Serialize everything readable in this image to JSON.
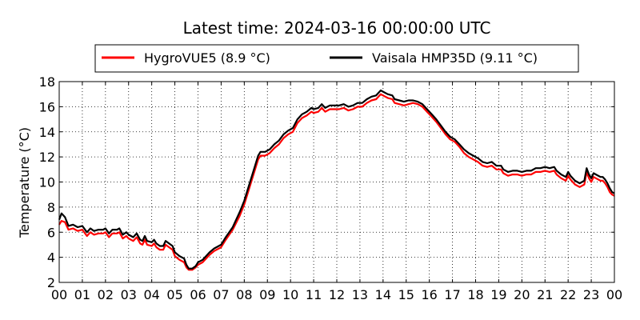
{
  "chart_data": {
    "type": "line",
    "title": "Latest time: 2024-03-16 00:00:00 UTC",
    "xlabel": "",
    "ylabel": "Temperature (°C)",
    "x_unit": "hour of day (UTC)",
    "xlim": [
      0,
      24
    ],
    "ylim": [
      2,
      18
    ],
    "grid": true,
    "legend_position": "top",
    "x_ticks": [
      "00",
      "01",
      "02",
      "03",
      "04",
      "05",
      "06",
      "07",
      "08",
      "09",
      "10",
      "11",
      "12",
      "13",
      "14",
      "15",
      "16",
      "17",
      "18",
      "19",
      "20",
      "21",
      "22",
      "23",
      "00"
    ],
    "y_ticks": [
      "2",
      "4",
      "6",
      "8",
      "10",
      "12",
      "14",
      "16",
      "18"
    ],
    "series": [
      {
        "name": "HygroVUE5 (8.9 °C)",
        "color": "#ff0000",
        "points": [
          [
            0.0,
            6.6
          ],
          [
            0.1,
            6.9
          ],
          [
            0.25,
            6.8
          ],
          [
            0.4,
            6.2
          ],
          [
            0.6,
            6.3
          ],
          [
            0.8,
            6.1
          ],
          [
            1.0,
            6.2
          ],
          [
            1.2,
            5.7
          ],
          [
            1.35,
            6.0
          ],
          [
            1.5,
            5.8
          ],
          [
            1.7,
            5.9
          ],
          [
            1.9,
            5.9
          ],
          [
            2.0,
            6.0
          ],
          [
            2.15,
            5.6
          ],
          [
            2.3,
            5.9
          ],
          [
            2.5,
            5.9
          ],
          [
            2.6,
            6.0
          ],
          [
            2.75,
            5.5
          ],
          [
            2.9,
            5.7
          ],
          [
            3.0,
            5.5
          ],
          [
            3.2,
            5.3
          ],
          [
            3.35,
            5.6
          ],
          [
            3.5,
            5.1
          ],
          [
            3.6,
            5.0
          ],
          [
            3.7,
            5.4
          ],
          [
            3.8,
            5.0
          ],
          [
            4.0,
            4.9
          ],
          [
            4.1,
            5.1
          ],
          [
            4.2,
            4.8
          ],
          [
            4.35,
            4.6
          ],
          [
            4.5,
            4.6
          ],
          [
            4.6,
            5.0
          ],
          [
            4.75,
            4.8
          ],
          [
            4.9,
            4.6
          ],
          [
            5.0,
            4.1
          ],
          [
            5.2,
            3.8
          ],
          [
            5.4,
            3.6
          ],
          [
            5.5,
            3.2
          ],
          [
            5.6,
            3.0
          ],
          [
            5.75,
            3.0
          ],
          [
            5.9,
            3.2
          ],
          [
            6.0,
            3.4
          ],
          [
            6.2,
            3.6
          ],
          [
            6.5,
            4.2
          ],
          [
            6.7,
            4.5
          ],
          [
            7.0,
            4.8
          ],
          [
            7.2,
            5.4
          ],
          [
            7.5,
            6.2
          ],
          [
            7.8,
            7.3
          ],
          [
            8.0,
            8.2
          ],
          [
            8.2,
            9.4
          ],
          [
            8.4,
            10.6
          ],
          [
            8.6,
            11.8
          ],
          [
            8.7,
            12.1
          ],
          [
            8.9,
            12.1
          ],
          [
            9.1,
            12.3
          ],
          [
            9.3,
            12.7
          ],
          [
            9.5,
            13.0
          ],
          [
            9.7,
            13.5
          ],
          [
            9.9,
            13.8
          ],
          [
            10.1,
            14.0
          ],
          [
            10.3,
            14.7
          ],
          [
            10.5,
            15.1
          ],
          [
            10.7,
            15.3
          ],
          [
            10.9,
            15.6
          ],
          [
            11.0,
            15.5
          ],
          [
            11.2,
            15.6
          ],
          [
            11.35,
            15.9
          ],
          [
            11.5,
            15.6
          ],
          [
            11.7,
            15.8
          ],
          [
            11.9,
            15.8
          ],
          [
            12.1,
            15.8
          ],
          [
            12.3,
            15.9
          ],
          [
            12.5,
            15.7
          ],
          [
            12.7,
            15.8
          ],
          [
            12.9,
            16.0
          ],
          [
            13.1,
            16.0
          ],
          [
            13.3,
            16.3
          ],
          [
            13.5,
            16.5
          ],
          [
            13.7,
            16.6
          ],
          [
            13.9,
            17.0
          ],
          [
            14.0,
            16.9
          ],
          [
            14.2,
            16.7
          ],
          [
            14.4,
            16.6
          ],
          [
            14.5,
            16.3
          ],
          [
            14.7,
            16.2
          ],
          [
            14.9,
            16.1
          ],
          [
            15.1,
            16.2
          ],
          [
            15.3,
            16.3
          ],
          [
            15.5,
            16.2
          ],
          [
            15.7,
            16.0
          ],
          [
            15.9,
            15.6
          ],
          [
            16.1,
            15.2
          ],
          [
            16.3,
            14.8
          ],
          [
            16.5,
            14.3
          ],
          [
            16.7,
            13.8
          ],
          [
            16.9,
            13.4
          ],
          [
            17.1,
            13.2
          ],
          [
            17.3,
            12.8
          ],
          [
            17.5,
            12.3
          ],
          [
            17.7,
            12.0
          ],
          [
            17.9,
            11.8
          ],
          [
            18.1,
            11.6
          ],
          [
            18.3,
            11.3
          ],
          [
            18.5,
            11.2
          ],
          [
            18.7,
            11.3
          ],
          [
            18.9,
            11.0
          ],
          [
            19.1,
            11.0
          ],
          [
            19.2,
            10.7
          ],
          [
            19.4,
            10.5
          ],
          [
            19.6,
            10.6
          ],
          [
            19.8,
            10.6
          ],
          [
            20.0,
            10.5
          ],
          [
            20.2,
            10.6
          ],
          [
            20.4,
            10.6
          ],
          [
            20.6,
            10.8
          ],
          [
            20.8,
            10.8
          ],
          [
            21.0,
            10.9
          ],
          [
            21.2,
            10.8
          ],
          [
            21.4,
            10.9
          ],
          [
            21.5,
            10.6
          ],
          [
            21.7,
            10.3
          ],
          [
            21.9,
            10.1
          ],
          [
            22.0,
            10.5
          ],
          [
            22.1,
            10.2
          ],
          [
            22.3,
            9.8
          ],
          [
            22.5,
            9.6
          ],
          [
            22.7,
            9.8
          ],
          [
            22.8,
            10.8
          ],
          [
            22.9,
            10.3
          ],
          [
            23.0,
            10.0
          ],
          [
            23.1,
            10.4
          ],
          [
            23.2,
            10.3
          ],
          [
            23.4,
            10.1
          ],
          [
            23.5,
            10.1
          ],
          [
            23.6,
            9.9
          ],
          [
            23.7,
            9.6
          ],
          [
            23.8,
            9.2
          ],
          [
            23.9,
            9.0
          ],
          [
            24.0,
            8.9
          ]
        ]
      },
      {
        "name": "Vaisala HMP35D (9.11 °C)",
        "color": "#000000",
        "points": [
          [
            0.0,
            7.0
          ],
          [
            0.1,
            7.5
          ],
          [
            0.25,
            7.2
          ],
          [
            0.4,
            6.5
          ],
          [
            0.6,
            6.6
          ],
          [
            0.8,
            6.4
          ],
          [
            1.0,
            6.5
          ],
          [
            1.2,
            6.0
          ],
          [
            1.35,
            6.3
          ],
          [
            1.5,
            6.1
          ],
          [
            1.7,
            6.2
          ],
          [
            1.9,
            6.2
          ],
          [
            2.0,
            6.3
          ],
          [
            2.15,
            5.9
          ],
          [
            2.3,
            6.2
          ],
          [
            2.5,
            6.2
          ],
          [
            2.6,
            6.3
          ],
          [
            2.75,
            5.8
          ],
          [
            2.9,
            6.0
          ],
          [
            3.0,
            5.8
          ],
          [
            3.2,
            5.6
          ],
          [
            3.35,
            5.9
          ],
          [
            3.5,
            5.4
          ],
          [
            3.6,
            5.3
          ],
          [
            3.7,
            5.7
          ],
          [
            3.8,
            5.3
          ],
          [
            4.0,
            5.2
          ],
          [
            4.1,
            5.4
          ],
          [
            4.2,
            5.1
          ],
          [
            4.35,
            4.9
          ],
          [
            4.5,
            4.9
          ],
          [
            4.6,
            5.3
          ],
          [
            4.75,
            5.1
          ],
          [
            4.9,
            4.9
          ],
          [
            5.0,
            4.4
          ],
          [
            5.2,
            4.1
          ],
          [
            5.4,
            3.9
          ],
          [
            5.5,
            3.4
          ],
          [
            5.6,
            3.1
          ],
          [
            5.75,
            3.1
          ],
          [
            5.9,
            3.3
          ],
          [
            6.0,
            3.6
          ],
          [
            6.2,
            3.8
          ],
          [
            6.5,
            4.4
          ],
          [
            6.7,
            4.7
          ],
          [
            7.0,
            5.0
          ],
          [
            7.2,
            5.6
          ],
          [
            7.5,
            6.4
          ],
          [
            7.8,
            7.6
          ],
          [
            8.0,
            8.5
          ],
          [
            8.2,
            9.7
          ],
          [
            8.4,
            10.9
          ],
          [
            8.6,
            12.1
          ],
          [
            8.7,
            12.4
          ],
          [
            8.9,
            12.4
          ],
          [
            9.1,
            12.6
          ],
          [
            9.3,
            13.0
          ],
          [
            9.5,
            13.3
          ],
          [
            9.7,
            13.8
          ],
          [
            9.9,
            14.1
          ],
          [
            10.1,
            14.3
          ],
          [
            10.3,
            15.0
          ],
          [
            10.5,
            15.4
          ],
          [
            10.7,
            15.6
          ],
          [
            10.9,
            15.9
          ],
          [
            11.0,
            15.8
          ],
          [
            11.2,
            15.9
          ],
          [
            11.35,
            16.2
          ],
          [
            11.5,
            15.9
          ],
          [
            11.7,
            16.1
          ],
          [
            11.9,
            16.1
          ],
          [
            12.1,
            16.1
          ],
          [
            12.3,
            16.2
          ],
          [
            12.5,
            16.0
          ],
          [
            12.7,
            16.1
          ],
          [
            12.9,
            16.3
          ],
          [
            13.1,
            16.3
          ],
          [
            13.3,
            16.6
          ],
          [
            13.5,
            16.8
          ],
          [
            13.7,
            16.9
          ],
          [
            13.9,
            17.3
          ],
          [
            14.0,
            17.2
          ],
          [
            14.2,
            17.0
          ],
          [
            14.4,
            16.9
          ],
          [
            14.5,
            16.6
          ],
          [
            14.7,
            16.5
          ],
          [
            14.9,
            16.4
          ],
          [
            15.1,
            16.5
          ],
          [
            15.3,
            16.5
          ],
          [
            15.5,
            16.4
          ],
          [
            15.7,
            16.2
          ],
          [
            15.9,
            15.8
          ],
          [
            16.1,
            15.4
          ],
          [
            16.3,
            15.0
          ],
          [
            16.5,
            14.5
          ],
          [
            16.7,
            14.0
          ],
          [
            16.9,
            13.6
          ],
          [
            17.1,
            13.4
          ],
          [
            17.3,
            13.0
          ],
          [
            17.5,
            12.6
          ],
          [
            17.7,
            12.3
          ],
          [
            17.9,
            12.1
          ],
          [
            18.1,
            11.9
          ],
          [
            18.3,
            11.6
          ],
          [
            18.5,
            11.5
          ],
          [
            18.7,
            11.6
          ],
          [
            18.9,
            11.3
          ],
          [
            19.1,
            11.3
          ],
          [
            19.2,
            11.0
          ],
          [
            19.4,
            10.8
          ],
          [
            19.6,
            10.9
          ],
          [
            19.8,
            10.9
          ],
          [
            20.0,
            10.8
          ],
          [
            20.2,
            10.9
          ],
          [
            20.4,
            10.9
          ],
          [
            20.6,
            11.1
          ],
          [
            20.8,
            11.1
          ],
          [
            21.0,
            11.2
          ],
          [
            21.2,
            11.1
          ],
          [
            21.4,
            11.2
          ],
          [
            21.5,
            10.9
          ],
          [
            21.7,
            10.6
          ],
          [
            21.9,
            10.4
          ],
          [
            22.0,
            10.8
          ],
          [
            22.1,
            10.5
          ],
          [
            22.3,
            10.1
          ],
          [
            22.5,
            9.9
          ],
          [
            22.7,
            10.1
          ],
          [
            22.8,
            11.1
          ],
          [
            22.9,
            10.6
          ],
          [
            23.0,
            10.3
          ],
          [
            23.1,
            10.7
          ],
          [
            23.2,
            10.6
          ],
          [
            23.4,
            10.4
          ],
          [
            23.5,
            10.4
          ],
          [
            23.6,
            10.2
          ],
          [
            23.7,
            9.9
          ],
          [
            23.8,
            9.5
          ],
          [
            23.9,
            9.2
          ],
          [
            24.0,
            9.1
          ]
        ]
      }
    ]
  }
}
